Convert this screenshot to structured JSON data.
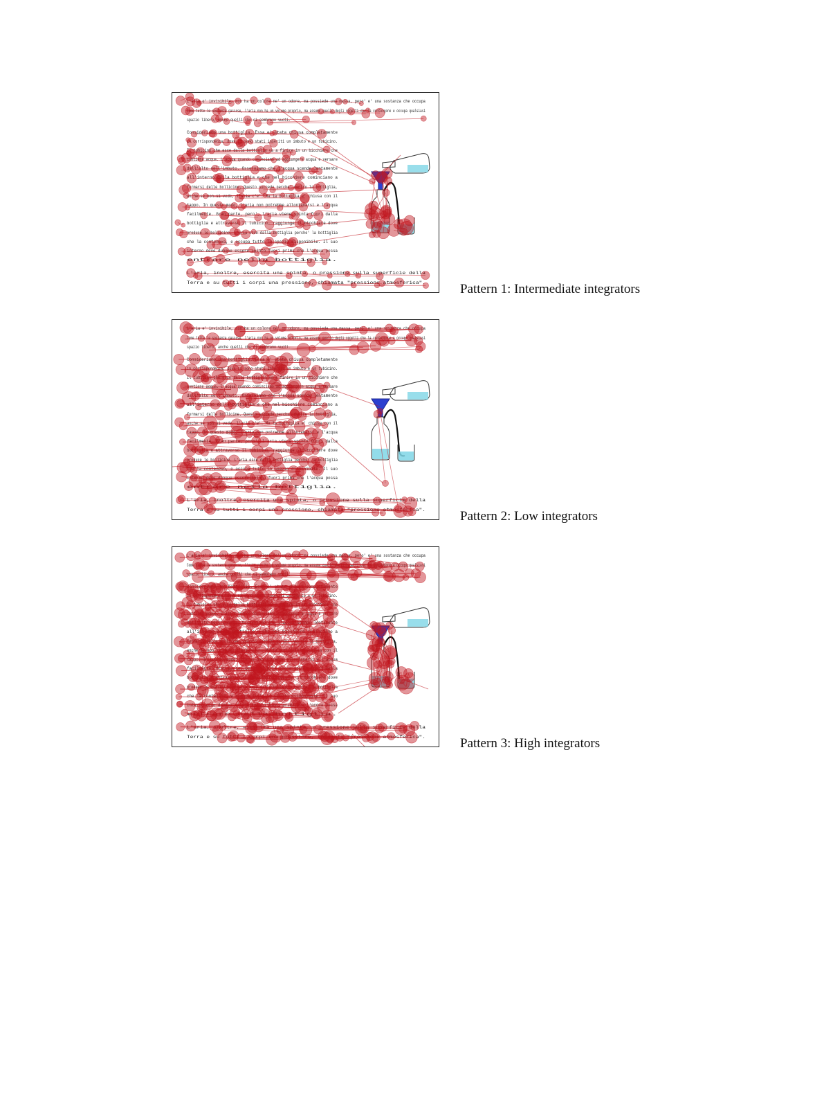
{
  "figure": {
    "panels": [
      {
        "caption": "Pattern 1: Intermediate integrators",
        "text_lines": [
          "L'aria e' invisibile, non ha un colore ne' un odore, ma possiede una massa, pero' e' una sostanza che occupa",
          "Come tutte le sostanze gassose, l'aria non ha un volume proprio, ma assume quello degli oggetti che la contengono e occupa qualsiasi",
          "spazio libero, anche quelli che ci sembrano vuoti.",
          "Consideriamo una bottiglia. Essa e' stata chiusa completamente",
          "in corrispondenza, dove ci sono stati inseriti un imbuto e un tubicino.",
          "Il tubicino che esce dalla bottiglia va a finire in un bicchiere che",
          "contiene acqua. L'acqua quando cominciamo ad aggiungere acqua e versare",
          "dall'alto nell'imbuto. Osserviamo che l'acqua scende lentamente",
          "all'interno della bottiglia e che nel bicchiere cominciano a",
          "formarsi delle bollicine. Questo succede perche' dentro la bottiglia,",
          "anche se non si vede, l'aria c'e'. Ma la bottiglia e' chiusa con il",
          "tappo. In questo modo, l'aria non potrebbe allontanarsi e l'acqua",
          "facilmente. Gran parte, pero', l'aria viene spinta fuori dalla",
          "bottiglia e attraverso il tubicino, raggiunge il bicchiere dove",
          "produce le bollicine. L'aria esce dalla bottiglia perche' la bottiglia",
          "che la conteneva, e occupa tutto lo spazio disponibile. Il suo",
          "interno deve dunque essere spinto fuori prima che l'acqua possa",
          "entrare nella bottiglia.",
          "L'aria, inoltre, esercita una spinta, o pressione sulla superficie della",
          "Terra e su tutti i corpi una pressione, chiamata \"pressione atmosferica\"."
        ]
      },
      {
        "caption": "Pattern 2: Low integrators",
        "text_lines": [
          "L'aria e' invisibile, non ha un colore ne' un odore, ma possiede una massa, pero' e' una sostanza che occupa",
          "Come tutte le sostanze gassose, l'aria non ha un volume proprio, ma assume quello degli oggetti che la contengono e occupa qualsiasi",
          "spazio libero, anche quelli che ci sembrano vuoti.",
          "Consideriamo una bottiglia. Essa e' stata chiusa completamente",
          "in corrispondenza, dove ci sono stati inseriti un imbuto e un tubicino.",
          "Il tubicino che esce dalla bottiglia va a finire in un bicchiere che",
          "contiene acqua. L'acqua quando cominciamo ad aggiungere acqua e versare",
          "dall'alto nell'imbuto. Osserviamo che l'acqua scende lentamente",
          "all'interno della bottiglia e che nel bicchiere cominciano a",
          "formarsi delle bollicine. Questo succede perche' dentro la bottiglia,",
          "anche se non si vede, l'aria c'e'. Ma la bottiglia e' chiusa con il",
          "tappo. In questo modo, l'aria non potrebbe allontanarsi e l'acqua",
          "facilmente. Gran parte, pero', l'aria viene spinta fuori dalla",
          "bottiglia e attraverso il tubicino, raggiunge il bicchiere dove",
          "produce le bollicine. L'aria esce dalla bottiglia perche' la bottiglia",
          "che la conteneva, e occupa tutto lo spazio disponibile. Il suo",
          "interno deve dunque essere spinto fuori prima che l'acqua possa",
          "entrare nella bottiglia.",
          "L'aria, inoltre, esercita una spinta, o pressione sulla superficie della",
          "Terra e su tutti i corpi una pressione, chiamata \"pressione atmosferica\"."
        ]
      },
      {
        "caption": "Pattern 3: High integrators",
        "text_lines": [
          "L'aria e' invisibile, non ha un colore ne' un odore, ma possiede una massa, pero' e' una sostanza che occupa",
          "Come tutte le sostanze gassose, l'aria non ha un volume proprio, ma assume quello degli oggetti che la contengono e occupa qualsiasi",
          "spazio libero, anche quelli che ci sembrano vuoti.",
          "Consideriamo una bottiglia. Essa e' stata chiusa completamente",
          "in corrispondenza, dove ci sono stati inseriti un imbuto e un tubicino.",
          "Il tubicino che esce dalla bottiglia va a finire in un bicchiere che",
          "contiene acqua. L'acqua quando cominciamo ad aggiungere acqua e versare",
          "dall'alto nell'imbuto. Osserviamo che l'acqua scende lentamente",
          "all'interno della bottiglia e che nel bicchiere cominciano a",
          "formarsi delle bollicine. Questo succede perche' dentro la bottiglia,",
          "anche se non si vede, l'aria c'e'. Ma la bottiglia e' chiusa con il",
          "tappo. In questo modo, l'aria non potrebbe allontanarsi e l'acqua",
          "facilmente. Gran parte, pero', l'aria viene spinta fuori dalla",
          "bottiglia e attraverso il tubicino, raggiunge il bicchiere dove",
          "produce le bollicine. L'aria esce dalla bottiglia perche' la bottiglia",
          "che la conteneva, e occupa tutto lo spazio disponibile. Il suo",
          "interno deve dunque essere spinto fuori prima che l'acqua possa",
          "entrare nella bottiglia.",
          "L'aria, inoltre, esercita una spinta, o pressione sulla superficie della",
          "Terra e su tutti i corpi una pressione, chiamata \"pressione atmosferica\"."
        ]
      }
    ]
  },
  "colors": {
    "fixation": "#c0161e",
    "water": "#7fd6e6",
    "funnel": "#2b3fd0",
    "frame": "#222222"
  },
  "icons": [
    "funnel-bottle-apparatus-icon",
    "pouring-flask-icon",
    "beaker-icon"
  ]
}
